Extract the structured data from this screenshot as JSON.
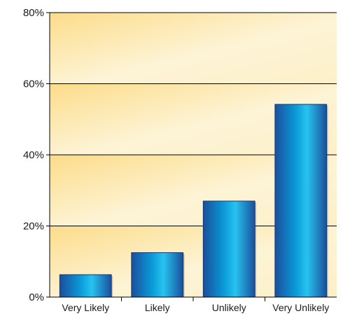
{
  "chart_data": {
    "type": "bar",
    "title": "",
    "xlabel": "",
    "ylabel": "",
    "categories": [
      "Very Likely",
      "Likely",
      "Unlikely",
      "Very Unlikely"
    ],
    "values": [
      6.3,
      12.5,
      27.0,
      54.2
    ],
    "ylim": [
      0,
      80
    ],
    "yticks": [
      0,
      20,
      40,
      60,
      80
    ],
    "ytick_labels": [
      "0%",
      "20%",
      "40%",
      "60%",
      "80%"
    ],
    "grid": true,
    "legend": false,
    "colors": {
      "bar_dark": "#1b4f9c",
      "bar_mid": "#0a9ad8",
      "bar_light": "#27c3f0",
      "band_dark": "#fcdc8a",
      "band_light": "#fdf4d6",
      "gridline": "#000000"
    }
  }
}
